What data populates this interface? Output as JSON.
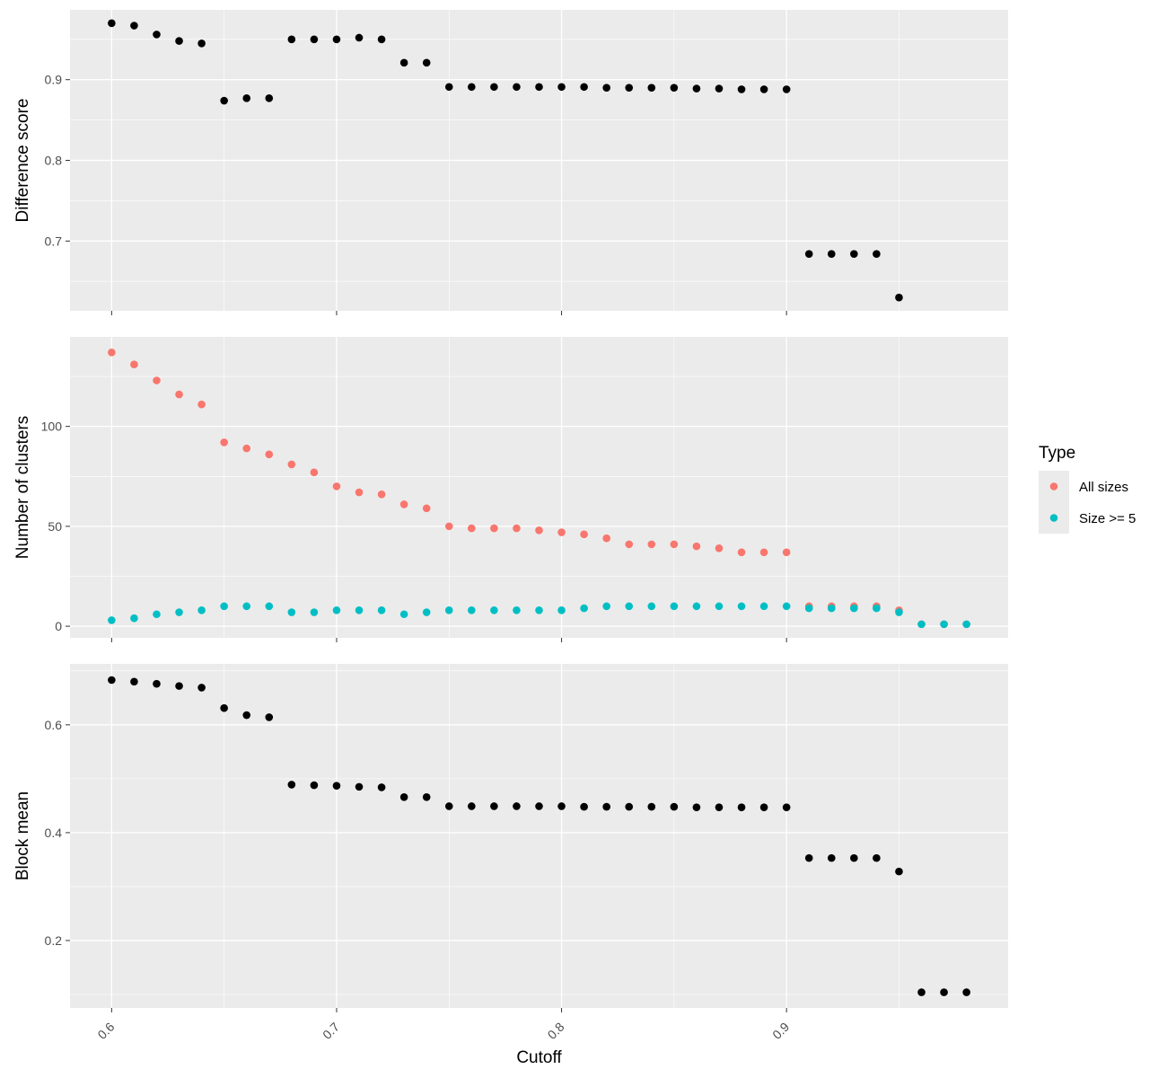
{
  "chart_data": {
    "type": "scatter",
    "xlabel": "Cutoff",
    "x_ticks": [
      "0.6",
      "0.7",
      "0.8",
      "0.9"
    ],
    "x_tick_values": [
      0.6,
      0.7,
      0.8,
      0.9
    ],
    "xlim": [
      0.5815,
      0.9985
    ],
    "grid": true,
    "legend": {
      "title": "Type",
      "position": "right",
      "entries": [
        {
          "label": "All sizes",
          "color": "#F8766D"
        },
        {
          "label": "Size >= 5",
          "color": "#00BFC4"
        }
      ]
    },
    "panels": [
      {
        "ylabel": "Difference score",
        "y_ticks": [
          "0.7",
          "0.8",
          "0.9"
        ],
        "y_tick_values": [
          0.7,
          0.8,
          0.9
        ],
        "ylim": [
          0.6135,
          0.9865
        ],
        "series": [
          {
            "color": "#000000",
            "x": [
              0.6,
              0.61,
              0.62,
              0.63,
              0.64,
              0.65,
              0.66,
              0.67,
              0.68,
              0.69,
              0.7,
              0.71,
              0.72,
              0.73,
              0.74,
              0.75,
              0.76,
              0.77,
              0.78,
              0.79,
              0.8,
              0.81,
              0.82,
              0.83,
              0.84,
              0.85,
              0.86,
              0.87,
              0.88,
              0.89,
              0.9,
              0.91,
              0.92,
              0.93,
              0.94,
              0.95
            ],
            "y": [
              0.97,
              0.967,
              0.956,
              0.948,
              0.945,
              0.874,
              0.877,
              0.877,
              0.95,
              0.95,
              0.95,
              0.952,
              0.95,
              0.921,
              0.921,
              0.891,
              0.891,
              0.891,
              0.891,
              0.891,
              0.891,
              0.891,
              0.89,
              0.89,
              0.89,
              0.89,
              0.889,
              0.889,
              0.888,
              0.888,
              0.888,
              0.684,
              0.684,
              0.684,
              0.684,
              0.63
            ]
          }
        ]
      },
      {
        "ylabel": "Number of clusters",
        "y_ticks": [
          "0",
          "50",
          "100"
        ],
        "y_tick_values": [
          0,
          50,
          100
        ],
        "ylim": [
          -5.8,
          144.8
        ],
        "series": [
          {
            "name": "All sizes",
            "color": "#F8766D",
            "x": [
              0.6,
              0.61,
              0.62,
              0.63,
              0.64,
              0.65,
              0.66,
              0.67,
              0.68,
              0.69,
              0.7,
              0.71,
              0.72,
              0.73,
              0.74,
              0.75,
              0.76,
              0.77,
              0.78,
              0.79,
              0.8,
              0.81,
              0.82,
              0.83,
              0.84,
              0.85,
              0.86,
              0.87,
              0.88,
              0.89,
              0.9,
              0.91,
              0.92,
              0.93,
              0.94,
              0.95,
              0.96,
              0.97,
              0.98
            ],
            "y": [
              137,
              131,
              123,
              116,
              111,
              92,
              89,
              86,
              81,
              77,
              70,
              67,
              66,
              61,
              59,
              50,
              49,
              49,
              49,
              48,
              47,
              46,
              44,
              41,
              41,
              41,
              40,
              39,
              37,
              37,
              37,
              10,
              10,
              10,
              10,
              8,
              1,
              1,
              1
            ]
          },
          {
            "name": "Size >= 5",
            "color": "#00BFC4",
            "x": [
              0.6,
              0.61,
              0.62,
              0.63,
              0.64,
              0.65,
              0.66,
              0.67,
              0.68,
              0.69,
              0.7,
              0.71,
              0.72,
              0.73,
              0.74,
              0.75,
              0.76,
              0.77,
              0.78,
              0.79,
              0.8,
              0.81,
              0.82,
              0.83,
              0.84,
              0.85,
              0.86,
              0.87,
              0.88,
              0.89,
              0.9,
              0.91,
              0.92,
              0.93,
              0.94,
              0.95,
              0.96,
              0.97,
              0.98
            ],
            "y": [
              3,
              4,
              6,
              7,
              8,
              10,
              10,
              10,
              7,
              7,
              8,
              8,
              8,
              6,
              7,
              8,
              8,
              8,
              8,
              8,
              8,
              9,
              10,
              10,
              10,
              10,
              10,
              10,
              10,
              10,
              10,
              9,
              9,
              9,
              9,
              7,
              1,
              1,
              1
            ]
          }
        ]
      },
      {
        "ylabel": "Block mean",
        "y_ticks": [
          "0.2",
          "0.4",
          "0.6"
        ],
        "y_tick_values": [
          0.2,
          0.4,
          0.6
        ],
        "ylim": [
          0.075,
          0.713
        ],
        "series": [
          {
            "color": "#000000",
            "x": [
              0.6,
              0.61,
              0.62,
              0.63,
              0.64,
              0.65,
              0.66,
              0.67,
              0.68,
              0.69,
              0.7,
              0.71,
              0.72,
              0.73,
              0.74,
              0.75,
              0.76,
              0.77,
              0.78,
              0.79,
              0.8,
              0.81,
              0.82,
              0.83,
              0.84,
              0.85,
              0.86,
              0.87,
              0.88,
              0.89,
              0.9,
              0.91,
              0.92,
              0.93,
              0.94,
              0.95,
              0.96,
              0.97,
              0.98
            ],
            "y": [
              0.683,
              0.68,
              0.676,
              0.672,
              0.669,
              0.631,
              0.618,
              0.614,
              0.489,
              0.488,
              0.487,
              0.485,
              0.484,
              0.466,
              0.466,
              0.449,
              0.449,
              0.449,
              0.449,
              0.449,
              0.449,
              0.448,
              0.448,
              0.448,
              0.448,
              0.448,
              0.447,
              0.447,
              0.447,
              0.447,
              0.447,
              0.353,
              0.353,
              0.353,
              0.353,
              0.328,
              0.104,
              0.104,
              0.104
            ]
          }
        ]
      }
    ]
  }
}
